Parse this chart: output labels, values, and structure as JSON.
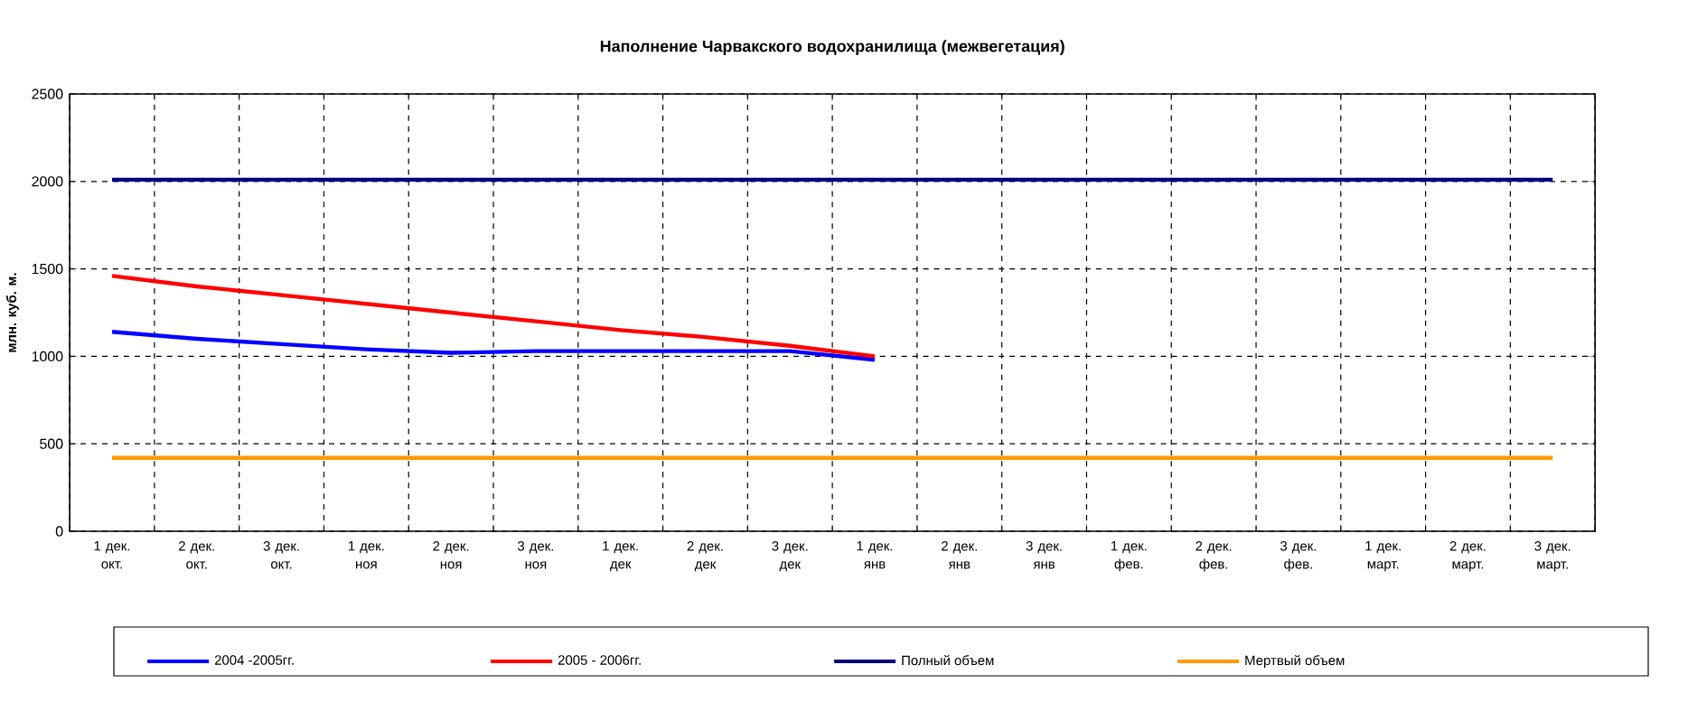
{
  "chart_data": {
    "type": "line",
    "title": "Наполнение Чарвакского водохранилища  (межвегетация)",
    "ylabel": "млн. куб. м.",
    "categories": [
      "1 дек. окт.",
      "2 дек. окт.",
      "3 дек. окт.",
      "1 дек. ноя",
      "2 дек. ноя",
      "3 дек. ноя",
      "1 дек. дек",
      "2 дек. дек",
      "3 дек. дек",
      "1 дек. янв",
      "2 дек. янв",
      "3 дек. янв",
      "1 дек. фев.",
      "2 дек. фев.",
      "3 дек. фев.",
      "1 дек. март.",
      "2 дек. март.",
      "3 дек. март."
    ],
    "series": [
      {
        "name": "2004 -2005гг.",
        "color": "#0000ff",
        "values": [
          1140,
          1100,
          1070,
          1040,
          1020,
          1030,
          1030,
          1030,
          1030,
          980,
          null,
          null,
          null,
          null,
          null,
          null,
          null,
          null
        ]
      },
      {
        "name": "2005 - 2006гг.",
        "color": "#ff0000",
        "values": [
          1460,
          1400,
          1350,
          1300,
          1250,
          1200,
          1150,
          1110,
          1060,
          1000,
          null,
          null,
          null,
          null,
          null,
          null,
          null,
          null
        ]
      },
      {
        "name": "Полный объем",
        "color": "#000080",
        "values": [
          2010,
          2010,
          2010,
          2010,
          2010,
          2010,
          2010,
          2010,
          2010,
          2010,
          2010,
          2010,
          2010,
          2010,
          2010,
          2010,
          2010,
          2010
        ]
      },
      {
        "name": "Мертвый объем",
        "color": "#ff9900",
        "values": [
          420,
          420,
          420,
          420,
          420,
          420,
          420,
          420,
          420,
          420,
          420,
          420,
          420,
          420,
          420,
          420,
          420,
          420
        ]
      }
    ],
    "ylim": [
      0,
      2500
    ],
    "yticks": [
      0,
      500,
      1000,
      1500,
      2000,
      2500
    ],
    "grid": true,
    "legend": "bottom",
    "marker": "none",
    "line_style": "solid"
  }
}
